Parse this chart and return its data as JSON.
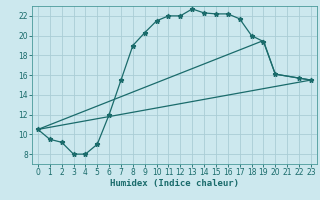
{
  "xlabel": "Humidex (Indice chaleur)",
  "bg_color": "#cce8ee",
  "grid_color": "#aacdd5",
  "line_color": "#1a6b6b",
  "spine_color": "#4a9a9a",
  "xlim": [
    -0.5,
    23.5
  ],
  "ylim": [
    7.0,
    23.0
  ],
  "xticks": [
    0,
    1,
    2,
    3,
    4,
    5,
    6,
    7,
    8,
    9,
    10,
    11,
    12,
    13,
    14,
    15,
    16,
    17,
    18,
    19,
    20,
    21,
    22,
    23
  ],
  "yticks": [
    8,
    10,
    12,
    14,
    16,
    18,
    20,
    22
  ],
  "curve1_x": [
    0,
    1,
    2,
    3,
    4,
    5,
    6,
    7,
    8,
    9,
    10,
    11,
    12,
    13,
    14,
    15,
    16,
    17,
    18,
    19,
    20,
    22,
    23
  ],
  "curve1_y": [
    10.5,
    9.5,
    9.2,
    8.0,
    8.0,
    9.0,
    12.0,
    15.5,
    19.0,
    20.3,
    21.5,
    22.0,
    22.0,
    22.7,
    22.3,
    22.2,
    22.2,
    21.7,
    20.0,
    19.4,
    16.1,
    15.7,
    15.5
  ],
  "line2_x": [
    0,
    23
  ],
  "line2_y": [
    10.5,
    15.5
  ],
  "line3_x": [
    0,
    19,
    20,
    22,
    23
  ],
  "line3_y": [
    10.5,
    19.5,
    16.1,
    15.7,
    15.5
  ]
}
